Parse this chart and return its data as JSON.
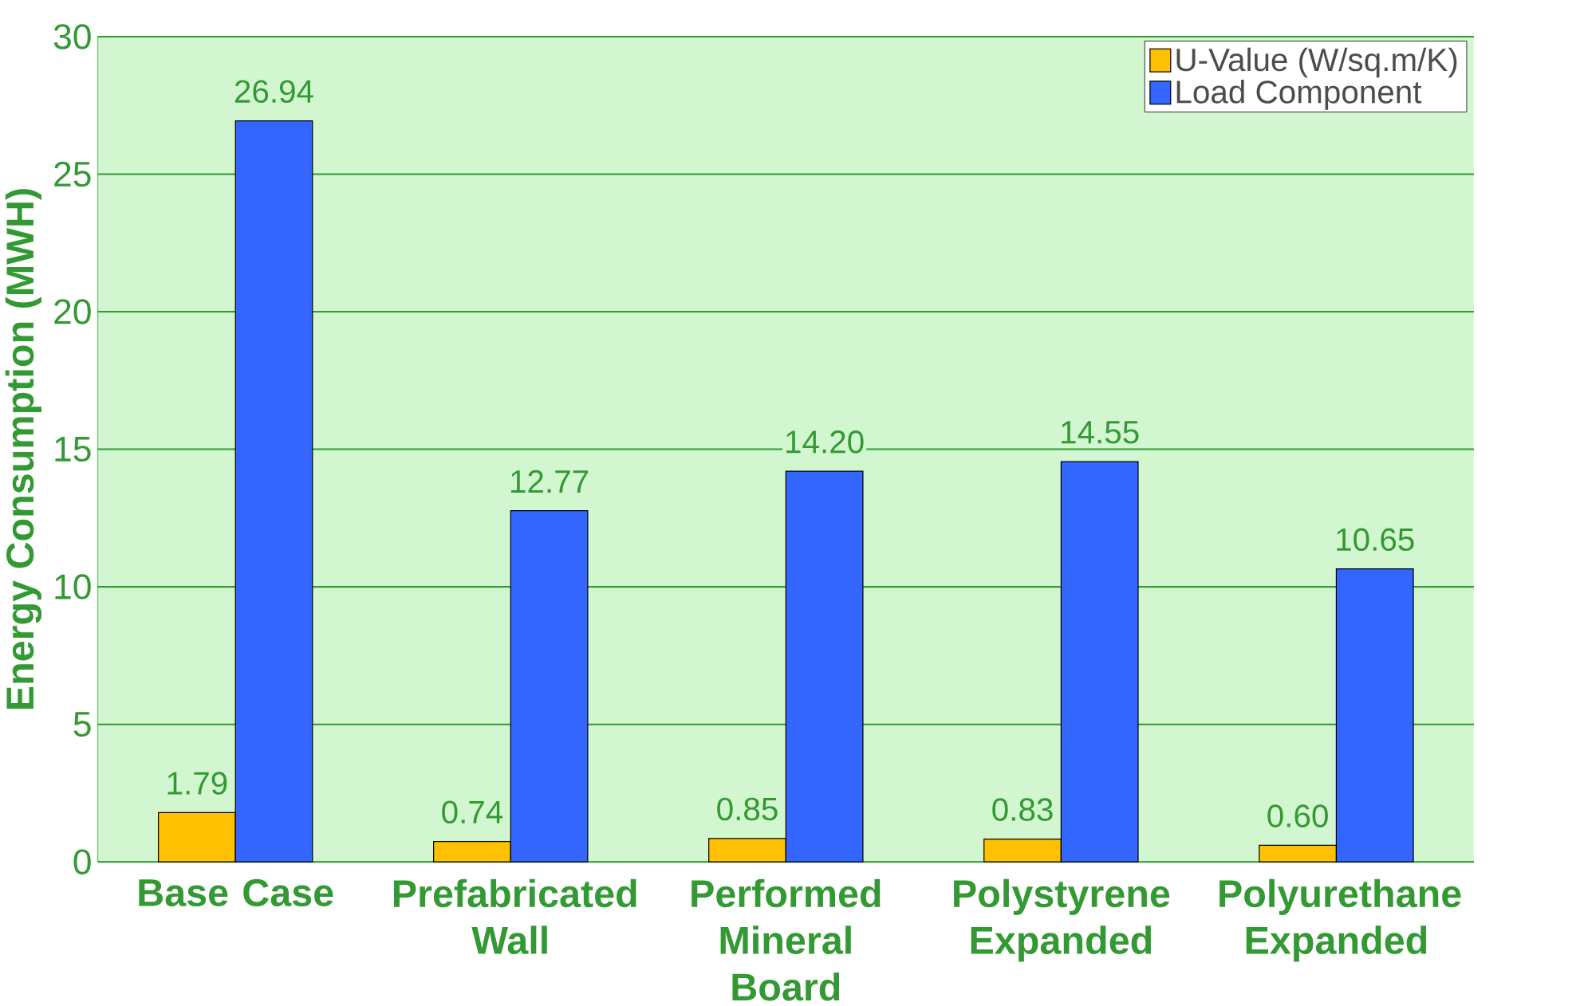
{
  "chart_data": {
    "type": "bar",
    "ylabel": "Energy Consumption (MWH)",
    "categories": [
      "Base Case",
      "Prefabricated Wall",
      "Performed Mineral Board",
      "Polystyrene Expanded",
      "Polyurethane Expanded"
    ],
    "series": [
      {
        "name": "U-Value (W/sq.m/K)",
        "color": "#ffc000",
        "values": [
          1.79,
          0.74,
          0.85,
          0.83,
          0.6
        ],
        "value_labels": [
          "1.79",
          "0.74",
          "0.85",
          "0.83",
          "0.60"
        ]
      },
      {
        "name": "Load Component",
        "color": "#3366ff",
        "values": [
          26.94,
          12.77,
          14.2,
          14.55,
          10.65
        ],
        "value_labels": [
          "26.94",
          "12.77",
          "14.20",
          "14.55",
          "10.65"
        ]
      }
    ],
    "ylim": [
      0,
      30
    ],
    "yticks": [
      0,
      5,
      10,
      15,
      20,
      25,
      30
    ],
    "grid": "y",
    "legend": "top right"
  }
}
